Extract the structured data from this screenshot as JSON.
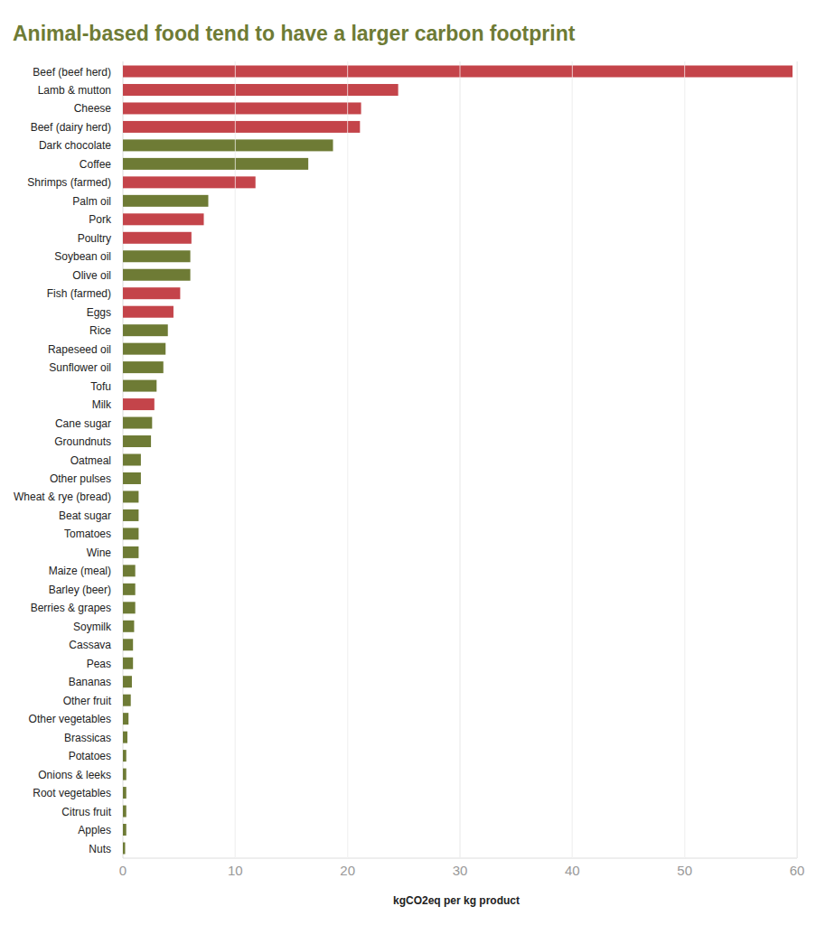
{
  "chart_data": {
    "type": "bar",
    "orientation": "horizontal",
    "title": "Animal-based food tend to have a larger carbon footprint",
    "x_label": "kgCO2eq per kg product",
    "categories": [
      "Beef (beef herd)",
      "Lamb & mutton",
      "Cheese",
      "Beef (dairy herd)",
      "Dark chocolate",
      "Coffee",
      "Shrimps (farmed)",
      "Palm oil",
      "Pork",
      "Poultry",
      "Soybean oil",
      "Olive oil",
      "Fish (farmed)",
      "Eggs",
      "Rice",
      "Rapeseed oil",
      "Sunflower oil",
      "Tofu",
      "Milk",
      "Cane sugar",
      "Groundnuts",
      "Oatmeal",
      "Other pulses",
      "Wheat & rye (bread)",
      "Beat sugar",
      "Tomatoes",
      "Wine",
      "Maize (meal)",
      "Barley (beer)",
      "Berries & grapes",
      "Soymilk",
      "Cassava",
      "Peas",
      "Bananas",
      "Other fruit",
      "Other vegetables",
      "Brassicas",
      "Potatoes",
      "Onions & leeks",
      "Root vegetables",
      "Citrus fruit",
      "Apples",
      "Nuts"
    ],
    "values": [
      59.6,
      24.5,
      21.2,
      21.1,
      18.7,
      16.5,
      11.8,
      7.6,
      7.2,
      6.1,
      6.0,
      6.0,
      5.1,
      4.5,
      4.0,
      3.8,
      3.6,
      3.0,
      2.8,
      2.6,
      2.5,
      1.6,
      1.6,
      1.4,
      1.4,
      1.4,
      1.4,
      1.1,
      1.1,
      1.1,
      1.0,
      0.9,
      0.9,
      0.8,
      0.7,
      0.5,
      0.4,
      0.3,
      0.3,
      0.3,
      0.3,
      0.3,
      0.2
    ],
    "colors": [
      "#c4444a",
      "#c4444a",
      "#c4444a",
      "#c4444a",
      "#6e7b35",
      "#6e7b35",
      "#c4444a",
      "#6e7b35",
      "#c4444a",
      "#c4444a",
      "#6e7b35",
      "#6e7b35",
      "#c4444a",
      "#c4444a",
      "#6e7b35",
      "#6e7b35",
      "#6e7b35",
      "#6e7b35",
      "#c4444a",
      "#6e7b35",
      "#6e7b35",
      "#6e7b35",
      "#6e7b35",
      "#6e7b35",
      "#6e7b35",
      "#6e7b35",
      "#6e7b35",
      "#6e7b35",
      "#6e7b35",
      "#6e7b35",
      "#6e7b35",
      "#6e7b35",
      "#6e7b35",
      "#6e7b35",
      "#6e7b35",
      "#6e7b35",
      "#6e7b35",
      "#6e7b35",
      "#6e7b35",
      "#6e7b35",
      "#6e7b35",
      "#6e7b35",
      "#6e7b35"
    ],
    "xlim": [
      0,
      60
    ],
    "xticks": [
      0,
      10,
      20,
      30,
      40,
      50,
      60
    ],
    "grid": true
  }
}
